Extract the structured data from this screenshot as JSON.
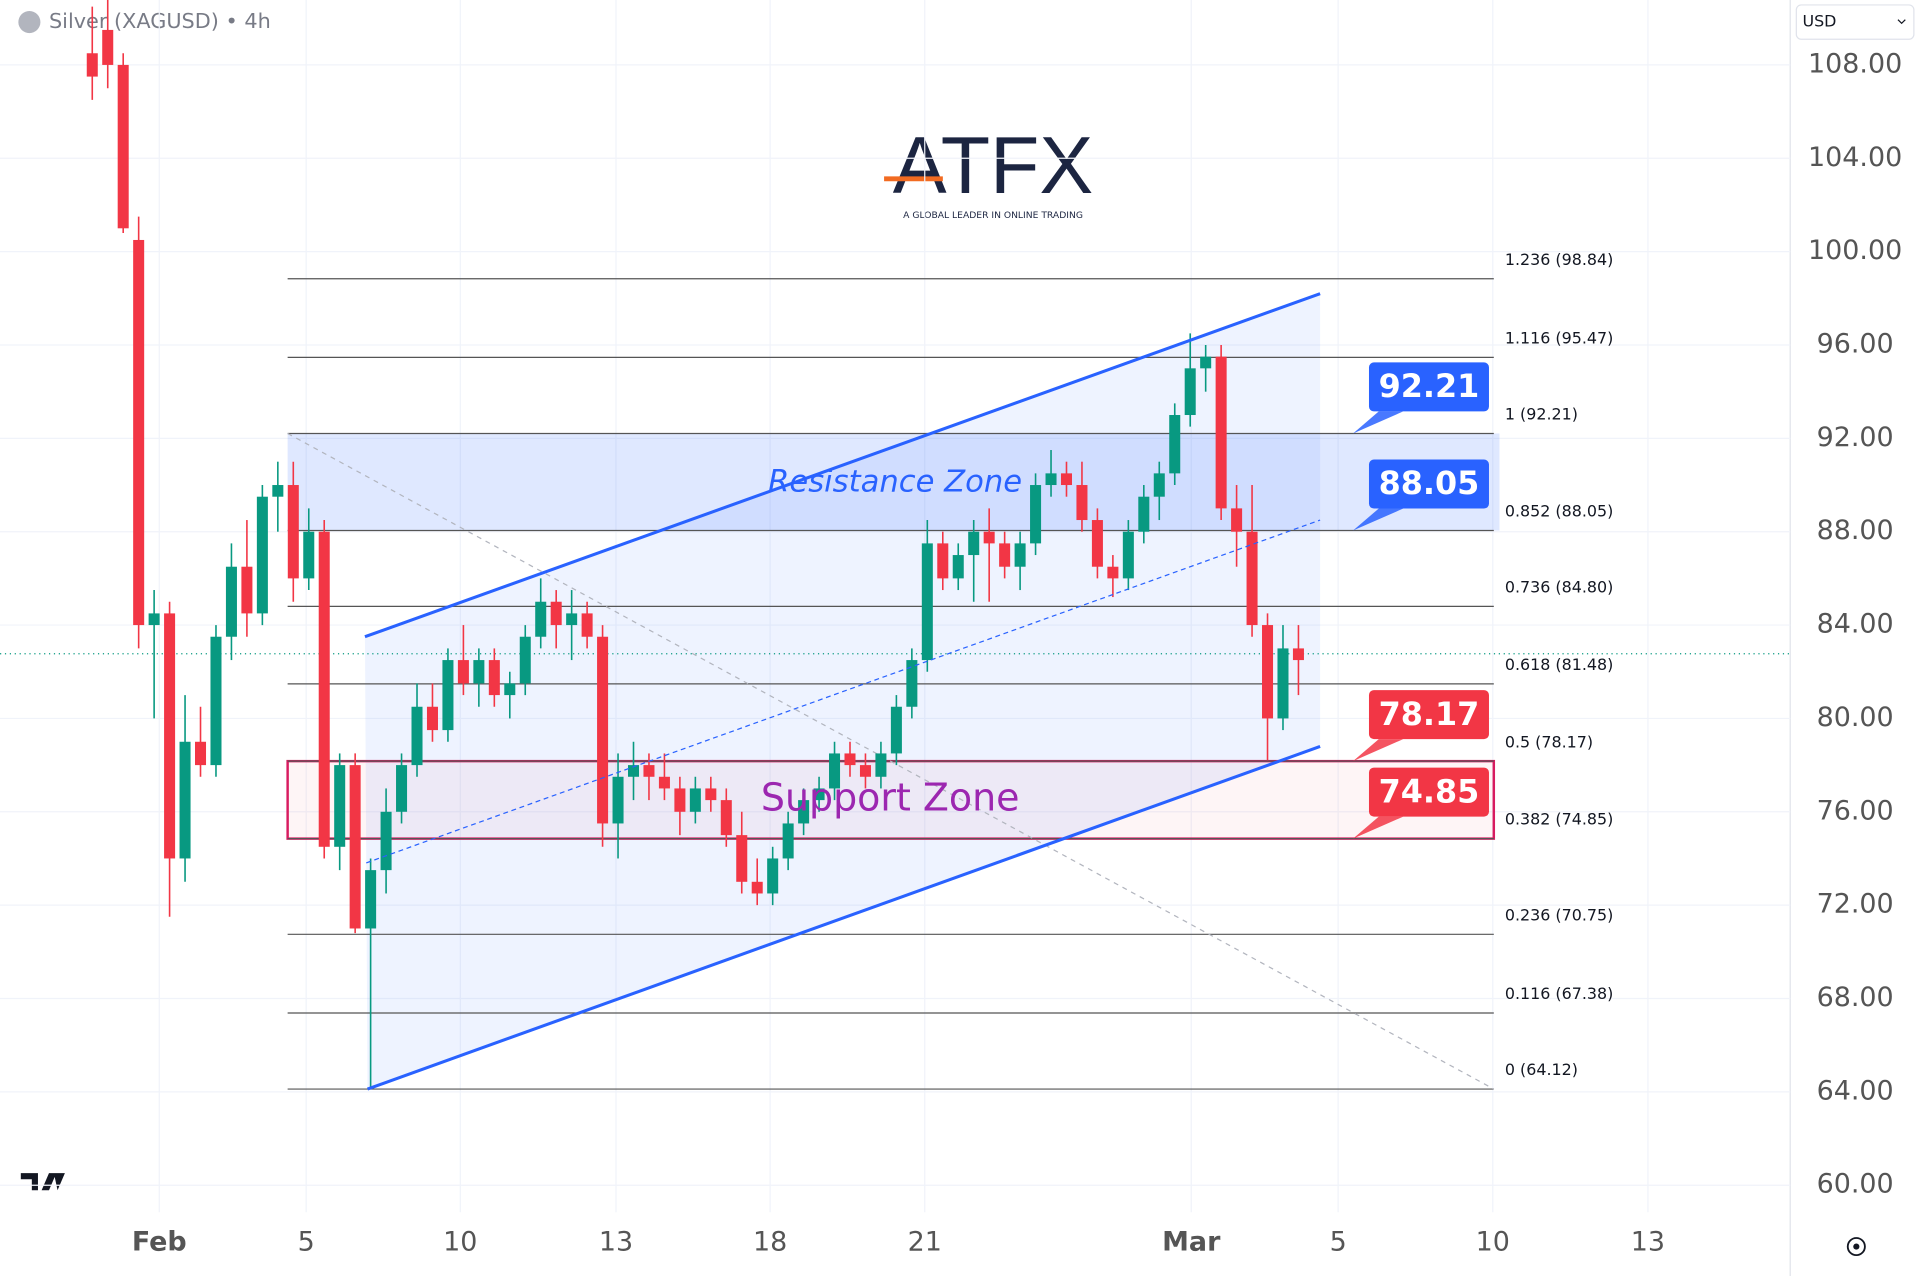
{
  "chart_data": {
    "type": "candlestick",
    "title": "Silver (XAGUSD) • 4h",
    "currency": "USD",
    "logo": {
      "name": "ATFX",
      "tagline": "A GLOBAL LEADER IN ONLINE TRADING"
    },
    "up_color": "#089981",
    "down_color": "#f23645",
    "xlim": [
      -3.09,
      31.64
    ],
    "ylim": [
      58.84,
      110.78
    ],
    "xticks": [
      {
        "value": 0,
        "label": "Feb"
      },
      {
        "value": 2.85,
        "label": "5"
      },
      {
        "value": 5.84,
        "label": "10"
      },
      {
        "value": 8.86,
        "label": "13"
      },
      {
        "value": 11.85,
        "label": "18"
      },
      {
        "value": 14.85,
        "label": "21"
      },
      {
        "value": 20.02,
        "label": "Mar"
      },
      {
        "value": 22.87,
        "label": "5"
      },
      {
        "value": 25.87,
        "label": "10"
      },
      {
        "value": 28.88,
        "label": "13"
      }
    ],
    "yticks": [
      {
        "value": 108,
        "label": "108.00"
      },
      {
        "value": 104,
        "label": "104.00"
      },
      {
        "value": 100,
        "label": "100.00"
      },
      {
        "value": 96,
        "label": "96.00"
      },
      {
        "value": 92,
        "label": "92.00"
      },
      {
        "value": 88,
        "label": "88.00"
      },
      {
        "value": 84,
        "label": "84.00"
      },
      {
        "value": 80,
        "label": "80.00"
      },
      {
        "value": 76,
        "label": "76.00"
      },
      {
        "value": 72,
        "label": "72.00"
      },
      {
        "value": 68,
        "label": "68.00"
      },
      {
        "value": 64,
        "label": "64.00"
      },
      {
        "value": 60,
        "label": "60.00"
      }
    ],
    "grid": true,
    "last_price": 82.77,
    "x": [
      -1.3,
      -1.0,
      -0.7,
      -0.4,
      -0.1,
      0.2,
      0.5,
      0.8,
      1.1,
      1.4,
      1.7,
      2.0,
      2.3,
      2.6,
      2.9,
      3.2,
      3.5,
      3.8,
      4.1,
      4.4,
      4.7,
      5.0,
      5.3,
      5.6,
      5.9,
      6.2,
      6.5,
      6.8,
      7.1,
      7.4,
      7.7,
      8.0,
      8.3,
      8.6,
      8.9,
      9.2,
      9.5,
      9.8,
      10.1,
      10.4,
      10.7,
      11.0,
      11.3,
      11.6,
      11.9,
      12.2,
      12.5,
      12.8,
      13.1,
      13.4,
      13.7,
      14.0,
      14.3,
      14.6,
      14.9,
      15.2,
      15.5,
      15.8,
      16.1,
      16.4,
      16.7,
      17.0,
      17.3,
      17.6,
      17.9,
      18.2,
      18.5,
      18.8,
      19.1,
      19.4,
      19.7,
      20.0,
      20.3,
      20.6,
      20.9,
      21.2,
      21.5,
      21.8,
      22.1
    ],
    "open": [
      108.5,
      109.5,
      108,
      100.5,
      84,
      84.5,
      74,
      79,
      78,
      83.5,
      86.5,
      84.5,
      89.5,
      90,
      86,
      88,
      74.5,
      78,
      71,
      73.5,
      76,
      78,
      80.5,
      79.5,
      82.5,
      81.5,
      82.5,
      81,
      81.5,
      83.5,
      85,
      84,
      84.5,
      83.5,
      75.5,
      77.5,
      78,
      77.5,
      77,
      76,
      77,
      76.5,
      75,
      73,
      72.5,
      74,
      75.5,
      76.5,
      77,
      78.5,
      78,
      77.5,
      78.5,
      80.5,
      82.5,
      87.5,
      86,
      87,
      88,
      87.5,
      86.5,
      87.5,
      90,
      90.5,
      90,
      88.5,
      86.5,
      86,
      88,
      89.5,
      90.5,
      93,
      95,
      95.5,
      89,
      88,
      84,
      80,
      83
    ],
    "high": [
      110.5,
      110.8,
      108.5,
      101.5,
      85.5,
      85,
      81,
      80.5,
      84,
      87.5,
      88.5,
      90,
      91,
      91,
      89,
      88.5,
      78.5,
      78.5,
      74,
      77,
      78.5,
      81.5,
      81.5,
      83,
      84,
      83,
      83,
      82,
      84,
      86,
      85.5,
      85.5,
      85,
      84,
      78.5,
      79,
      78.5,
      78.5,
      77.5,
      77.5,
      77.5,
      77,
      76,
      74,
      74.5,
      76,
      77,
      77.5,
      79,
      79,
      78.5,
      79,
      81,
      83,
      88.5,
      88,
      87.5,
      88.5,
      89,
      88,
      88,
      90.5,
      91.5,
      91,
      91,
      89,
      87,
      88.5,
      90,
      91,
      93.5,
      96.5,
      96,
      96,
      90,
      90,
      84.5,
      84,
      84
    ],
    "low": [
      106.5,
      107,
      100.8,
      83,
      80,
      71.5,
      73,
      77.5,
      77.5,
      82.5,
      83.5,
      84,
      88,
      85,
      85.5,
      74,
      73.5,
      70.8,
      64.12,
      72.5,
      75.5,
      77.5,
      79,
      79,
      81,
      80.5,
      80.5,
      80,
      81,
      83,
      83,
      82.5,
      83,
      74.5,
      74,
      76.5,
      76.5,
      76.5,
      75,
      75.5,
      76,
      74.5,
      72.5,
      72,
      72,
      73.5,
      75,
      76,
      76.5,
      77.5,
      77,
      77,
      78,
      80,
      82,
      85.5,
      85.5,
      85,
      85,
      86,
      85.5,
      87,
      89.5,
      89.5,
      88,
      86,
      85.2,
      85.5,
      87.5,
      88.5,
      90,
      92.5,
      94,
      88.5,
      86.5,
      83.5,
      78.2,
      79.5,
      81
    ],
    "close": [
      107.5,
      108,
      101,
      84,
      84.5,
      74,
      79,
      78,
      83.5,
      86.5,
      84.5,
      89.5,
      90,
      86,
      88,
      74.5,
      78,
      71,
      73.5,
      76,
      78,
      80.5,
      79.5,
      82.5,
      81.5,
      82.5,
      81,
      81.5,
      83.5,
      85,
      84,
      84.5,
      83.5,
      75.5,
      77.5,
      78,
      77.5,
      77,
      76,
      77,
      76.5,
      75,
      73,
      72.5,
      74,
      75.5,
      76.5,
      77,
      78.5,
      78,
      77.5,
      78.5,
      80.5,
      82.5,
      87.5,
      86,
      87,
      88,
      87.5,
      86.5,
      87.5,
      90,
      90.5,
      90,
      88.5,
      86.5,
      86,
      88,
      89.5,
      90.5,
      93,
      95,
      95.5,
      89,
      88,
      84,
      80,
      83,
      82.5
    ],
    "fib": {
      "x": [
        2.49,
        25.89
      ],
      "levels": [
        {
          "value": 98.84,
          "label": "1.236 (98.84)"
        },
        {
          "value": 95.47,
          "label": "1.116 (95.47)"
        },
        {
          "value": 92.21,
          "label": "1 (92.21)"
        },
        {
          "value": 88.05,
          "label": "0.852 (88.05)"
        },
        {
          "value": 84.8,
          "label": "0.736 (84.80)"
        },
        {
          "value": 81.48,
          "label": "0.618 (81.48)"
        },
        {
          "value": 78.17,
          "label": "0.5 (78.17)"
        },
        {
          "value": 74.85,
          "label": "0.382 (74.85)"
        },
        {
          "value": 70.75,
          "label": "0.236 (70.75)"
        },
        {
          "value": 67.38,
          "label": "0.116 (67.38)"
        },
        {
          "value": 64.12,
          "label": "0 (64.12)"
        }
      ]
    },
    "trend_line": [
      [
        2.49,
        92.21
      ],
      [
        25.89,
        64.12
      ]
    ],
    "channel": {
      "upper": [
        [
          3.99,
          83.5
        ],
        [
          22.52,
          98.2
        ]
      ],
      "lower": [
        [
          4.04,
          64.12
        ],
        [
          22.52,
          78.8
        ]
      ]
    },
    "zones": [
      {
        "label": "Resistance Zone",
        "top": 92.21,
        "bottom": 88.05,
        "x": [
          2.49,
          26.0
        ],
        "color": "#2962ff"
      },
      {
        "label": "Support Zone",
        "top": 78.17,
        "bottom": 74.85,
        "x": [
          2.49,
          25.89
        ],
        "color": "#9c27b0"
      }
    ],
    "price_badges": [
      {
        "value": 92.21,
        "color": "#2962ff"
      },
      {
        "value": 88.05,
        "color": "#2962ff"
      },
      {
        "value": 78.17,
        "color": "#f23645"
      },
      {
        "value": 74.85,
        "color": "#f23645"
      }
    ]
  }
}
